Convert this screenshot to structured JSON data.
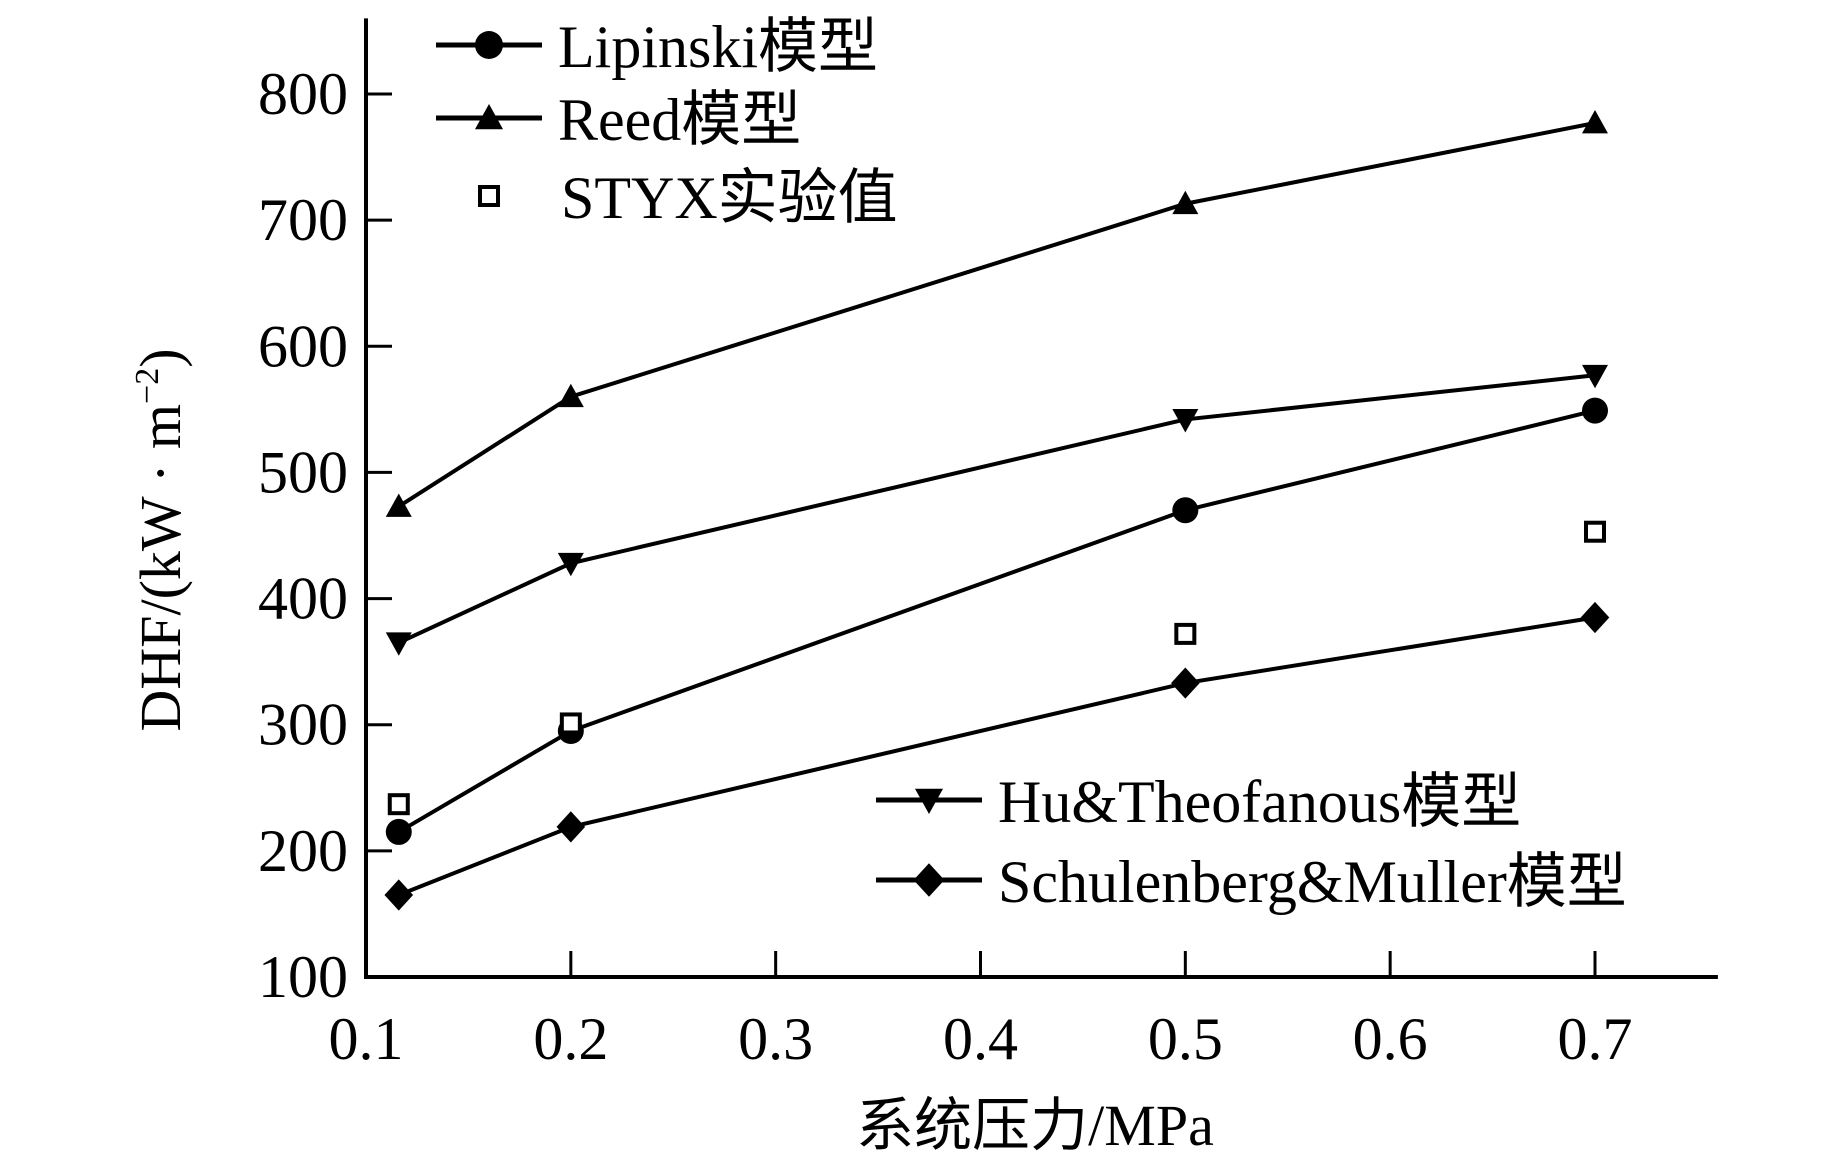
{
  "chart_data": {
    "type": "line",
    "title": "",
    "xlabel": "系统压力/MPa",
    "ylabel": "DHF/(kW · m",
    "ylabel_sup": "−2",
    "ylabel_close": ")",
    "xlim": [
      0.1,
      0.76
    ],
    "ylim": [
      100,
      860
    ],
    "xticks": [
      0.1,
      0.2,
      0.3,
      0.4,
      0.5,
      0.6,
      0.7
    ],
    "xtick_labels": [
      "0.1",
      "0.2",
      "0.3",
      "0.4",
      "0.5",
      "0.6",
      "0.7"
    ],
    "yticks": [
      100,
      200,
      300,
      400,
      500,
      600,
      700,
      800
    ],
    "ytick_labels": [
      "100",
      "200",
      "300",
      "400",
      "500",
      "600",
      "700",
      "800"
    ],
    "grid": false,
    "x": [
      0.116,
      0.2,
      0.5,
      0.7
    ],
    "series": [
      {
        "name": "Lipinski模型",
        "marker": "circle",
        "line": true,
        "values": [
          215,
          295,
          470,
          549
        ]
      },
      {
        "name": "Reed模型",
        "marker": "triangle-up",
        "line": true,
        "values": [
          473,
          560,
          713,
          777
        ]
      },
      {
        "name": "STYX实验值",
        "marker": "square-open",
        "line": false,
        "values": [
          237,
          301,
          372,
          453
        ]
      },
      {
        "name": "Hu&Theofanous模型",
        "marker": "triangle-down",
        "line": true,
        "values": [
          365,
          428,
          542,
          577
        ]
      },
      {
        "name": "Schulenberg&Muller模型",
        "marker": "diamond",
        "line": true,
        "values": [
          165,
          219,
          333,
          385
        ]
      }
    ],
    "legend_placement": [
      "top-left",
      "top-left",
      "top-left",
      "bottom-right",
      "bottom-right"
    ]
  }
}
